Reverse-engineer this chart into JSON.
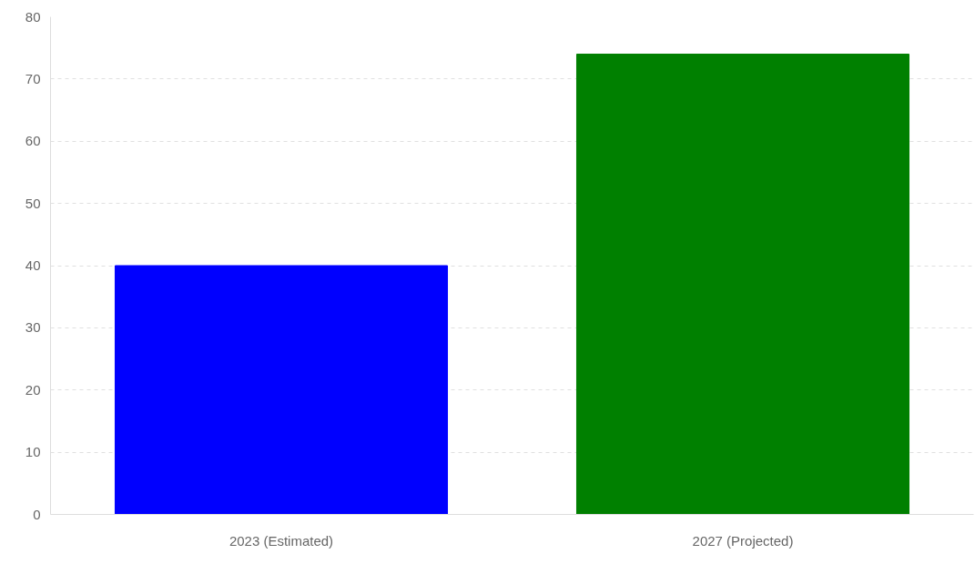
{
  "chart_data": {
    "type": "bar",
    "categories": [
      "2023 (Estimated)",
      "2027 (Projected)"
    ],
    "values": [
      40,
      74
    ],
    "colors": [
      "#0000ff",
      "#008000"
    ],
    "ylim": [
      0,
      80
    ],
    "yticks": [
      0,
      10,
      20,
      30,
      40,
      50,
      60,
      70,
      80
    ],
    "grid": "y"
  }
}
